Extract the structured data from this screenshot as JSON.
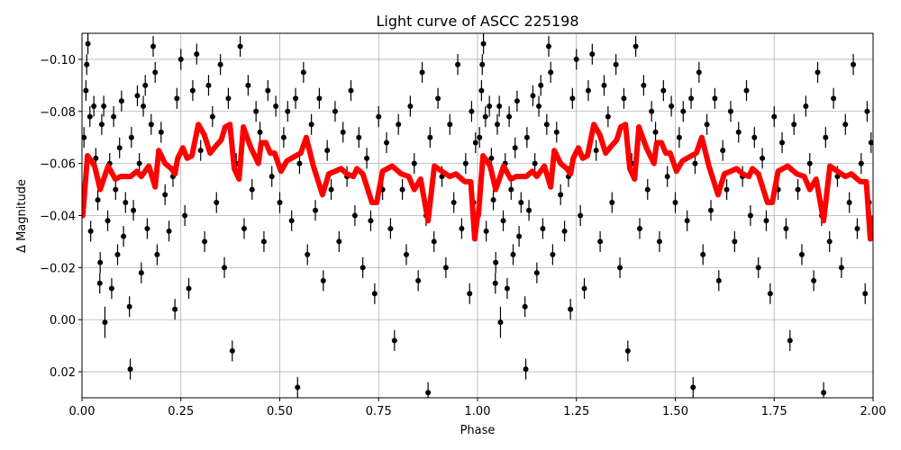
{
  "chart_data": {
    "type": "scatter",
    "title": "Light curve of ASCC 225198",
    "xlabel": "Phase",
    "ylabel": "Δ Magnitude",
    "xlim": [
      0,
      2
    ],
    "ylim": [
      0.03,
      -0.11
    ],
    "y_inverted": true,
    "grid": true,
    "xticks": [
      0,
      0.25,
      0.5,
      0.75,
      1.0,
      1.25,
      1.5,
      1.75,
      2.0
    ],
    "xtick_labels": [
      "0.00",
      "0.25",
      "0.50",
      "0.75",
      "1.00",
      "1.25",
      "1.50",
      "1.75",
      "2.00"
    ],
    "yticks": [
      -0.1,
      -0.08,
      -0.06,
      -0.04,
      -0.02,
      0.0,
      0.02
    ],
    "ytick_labels": [
      "−0.10",
      "−0.08",
      "−0.06",
      "−0.04",
      "−0.02",
      "0.00",
      "0.02"
    ],
    "repeat_period": 1,
    "colors": {
      "points": "#000000",
      "model": "#ff0000"
    },
    "series": [
      {
        "kind": "errorbar-points",
        "points": [
          [
            0.005,
            -0.07,
            0.004
          ],
          [
            0.01,
            -0.088,
            0.004
          ],
          [
            0.012,
            -0.098,
            0.004
          ],
          [
            0.015,
            -0.106,
            0.004
          ],
          [
            0.02,
            -0.078,
            0.004
          ],
          [
            0.022,
            -0.034,
            0.004
          ],
          [
            0.03,
            -0.082,
            0.004
          ],
          [
            0.035,
            -0.062,
            0.004
          ],
          [
            0.04,
            -0.046,
            0.004
          ],
          [
            0.045,
            -0.014,
            0.004
          ],
          [
            0.046,
            -0.022,
            0.004
          ],
          [
            0.05,
            -0.075,
            0.004
          ],
          [
            0.055,
            -0.082,
            0.004
          ],
          [
            0.058,
            0.001,
            0.006
          ],
          [
            0.065,
            -0.038,
            0.004
          ],
          [
            0.07,
            -0.06,
            0.004
          ],
          [
            0.075,
            -0.012,
            0.004
          ],
          [
            0.08,
            -0.078,
            0.004
          ],
          [
            0.085,
            -0.05,
            0.004
          ],
          [
            0.09,
            -0.025,
            0.004
          ],
          [
            0.095,
            -0.066,
            0.004
          ],
          [
            0.1,
            -0.084,
            0.004
          ],
          [
            0.105,
            -0.032,
            0.004
          ],
          [
            0.11,
            -0.045,
            0.004
          ],
          [
            0.12,
            -0.005,
            0.004
          ],
          [
            0.122,
            0.019,
            0.004
          ],
          [
            0.125,
            -0.07,
            0.004
          ],
          [
            0.13,
            -0.042,
            0.004
          ],
          [
            0.14,
            -0.086,
            0.004
          ],
          [
            0.145,
            -0.06,
            0.004
          ],
          [
            0.15,
            -0.018,
            0.004
          ],
          [
            0.155,
            -0.082,
            0.004
          ],
          [
            0.16,
            -0.09,
            0.004
          ],
          [
            0.165,
            -0.035,
            0.004
          ],
          [
            0.175,
            -0.075,
            0.004
          ],
          [
            0.18,
            -0.105,
            0.004
          ],
          [
            0.185,
            -0.095,
            0.004
          ],
          [
            0.19,
            -0.025,
            0.004
          ],
          [
            0.2,
            -0.072,
            0.004
          ],
          [
            0.21,
            -0.048,
            0.004
          ],
          [
            0.22,
            -0.034,
            0.004
          ],
          [
            0.23,
            -0.055,
            0.004
          ],
          [
            0.235,
            -0.004,
            0.004
          ],
          [
            0.24,
            -0.085,
            0.004
          ],
          [
            0.25,
            -0.1,
            0.004
          ],
          [
            0.26,
            -0.04,
            0.004
          ],
          [
            0.27,
            -0.012,
            0.004
          ],
          [
            0.28,
            -0.088,
            0.004
          ],
          [
            0.29,
            -0.102,
            0.004
          ],
          [
            0.3,
            -0.065,
            0.004
          ],
          [
            0.31,
            -0.03,
            0.004
          ],
          [
            0.32,
            -0.09,
            0.004
          ],
          [
            0.33,
            -0.078,
            0.004
          ],
          [
            0.34,
            -0.045,
            0.004
          ],
          [
            0.35,
            -0.098,
            0.004
          ],
          [
            0.36,
            -0.02,
            0.004
          ],
          [
            0.37,
            -0.085,
            0.004
          ],
          [
            0.38,
            0.012,
            0.004
          ],
          [
            0.39,
            -0.06,
            0.004
          ],
          [
            0.4,
            -0.105,
            0.004
          ],
          [
            0.41,
            -0.035,
            0.004
          ],
          [
            0.42,
            -0.09,
            0.004
          ],
          [
            0.43,
            -0.05,
            0.004
          ],
          [
            0.44,
            -0.08,
            0.004
          ],
          [
            0.45,
            -0.072,
            0.004
          ],
          [
            0.46,
            -0.03,
            0.004
          ],
          [
            0.47,
            -0.088,
            0.004
          ],
          [
            0.48,
            -0.055,
            0.004
          ],
          [
            0.49,
            -0.082,
            0.004
          ],
          [
            0.5,
            -0.045,
            0.004
          ],
          [
            0.51,
            -0.07,
            0.004
          ],
          [
            0.52,
            -0.08,
            0.004
          ],
          [
            0.53,
            -0.038,
            0.004
          ],
          [
            0.54,
            -0.085,
            0.004
          ],
          [
            0.545,
            0.026,
            0.004
          ],
          [
            0.55,
            -0.06,
            0.004
          ],
          [
            0.56,
            -0.095,
            0.004
          ],
          [
            0.57,
            -0.025,
            0.004
          ],
          [
            0.58,
            -0.075,
            0.004
          ],
          [
            0.59,
            -0.042,
            0.004
          ],
          [
            0.6,
            -0.085,
            0.004
          ],
          [
            0.61,
            -0.015,
            0.004
          ],
          [
            0.62,
            -0.065,
            0.004
          ],
          [
            0.63,
            -0.05,
            0.004
          ],
          [
            0.64,
            -0.08,
            0.004
          ],
          [
            0.65,
            -0.03,
            0.004
          ],
          [
            0.66,
            -0.072,
            0.004
          ],
          [
            0.67,
            -0.055,
            0.004
          ],
          [
            0.68,
            -0.088,
            0.004
          ],
          [
            0.69,
            -0.04,
            0.004
          ],
          [
            0.7,
            -0.07,
            0.004
          ],
          [
            0.71,
            -0.02,
            0.004
          ],
          [
            0.72,
            -0.062,
            0.004
          ],
          [
            0.73,
            -0.038,
            0.004
          ],
          [
            0.74,
            -0.01,
            0.004
          ],
          [
            0.75,
            -0.078,
            0.004
          ],
          [
            0.76,
            -0.05,
            0.004
          ],
          [
            0.77,
            -0.068,
            0.004
          ],
          [
            0.78,
            -0.035,
            0.004
          ],
          [
            0.79,
            0.008,
            0.004
          ],
          [
            0.8,
            -0.075,
            0.004
          ],
          [
            0.81,
            -0.05,
            0.004
          ],
          [
            0.82,
            -0.025,
            0.004
          ],
          [
            0.83,
            -0.082,
            0.004
          ],
          [
            0.84,
            -0.06,
            0.004
          ],
          [
            0.85,
            -0.015,
            0.004
          ],
          [
            0.86,
            -0.095,
            0.004
          ],
          [
            0.87,
            -0.04,
            0.004
          ],
          [
            0.875,
            0.028,
            0.004
          ],
          [
            0.88,
            -0.07,
            0.004
          ],
          [
            0.89,
            -0.03,
            0.004
          ],
          [
            0.9,
            -0.085,
            0.004
          ],
          [
            0.91,
            -0.055,
            0.004
          ],
          [
            0.92,
            -0.02,
            0.004
          ],
          [
            0.93,
            -0.075,
            0.004
          ],
          [
            0.94,
            -0.045,
            0.004
          ],
          [
            0.95,
            -0.098,
            0.004
          ],
          [
            0.96,
            -0.035,
            0.004
          ],
          [
            0.97,
            -0.06,
            0.004
          ],
          [
            0.98,
            -0.01,
            0.004
          ],
          [
            0.985,
            -0.08,
            0.004
          ],
          [
            0.99,
            -0.045,
            0.004
          ],
          [
            0.995,
            -0.068,
            0.004
          ]
        ]
      },
      {
        "kind": "model-line",
        "x": [
          0.0,
          0.002,
          0.014,
          0.032,
          0.046,
          0.066,
          0.084,
          0.098,
          0.123,
          0.139,
          0.15,
          0.169,
          0.185,
          0.194,
          0.21,
          0.226,
          0.235,
          0.242,
          0.255,
          0.266,
          0.278,
          0.294,
          0.309,
          0.324,
          0.34,
          0.352,
          0.362,
          0.374,
          0.385,
          0.397,
          0.408,
          0.427,
          0.446,
          0.453,
          0.465,
          0.476,
          0.487,
          0.503,
          0.518,
          0.541,
          0.553,
          0.567,
          0.585,
          0.608,
          0.624,
          0.64,
          0.655,
          0.67,
          0.686,
          0.695,
          0.71,
          0.733,
          0.745,
          0.76,
          0.784,
          0.807,
          0.826,
          0.84,
          0.856,
          0.875,
          0.891,
          0.91,
          0.93,
          0.945,
          0.968,
          0.983,
          0.993,
          1.0
        ],
        "y": [
          -0.04,
          -0.04,
          -0.063,
          -0.059,
          -0.05,
          -0.059,
          -0.054,
          -0.055,
          -0.055,
          -0.057,
          -0.055,
          -0.059,
          -0.051,
          -0.065,
          -0.06,
          -0.058,
          -0.056,
          -0.062,
          -0.066,
          -0.062,
          -0.063,
          -0.075,
          -0.071,
          -0.064,
          -0.067,
          -0.069,
          -0.074,
          -0.075,
          -0.058,
          -0.054,
          -0.074,
          -0.066,
          -0.06,
          -0.068,
          -0.068,
          -0.064,
          -0.064,
          -0.057,
          -0.061,
          -0.063,
          -0.064,
          -0.07,
          -0.059,
          -0.048,
          -0.056,
          -0.057,
          -0.058,
          -0.056,
          -0.055,
          -0.058,
          -0.056,
          -0.045,
          -0.045,
          -0.057,
          -0.059,
          -0.056,
          -0.055,
          -0.05,
          -0.054,
          -0.038,
          -0.059,
          -0.057,
          -0.055,
          -0.056,
          -0.053,
          -0.053,
          -0.031,
          -0.04
        ]
      }
    ]
  }
}
